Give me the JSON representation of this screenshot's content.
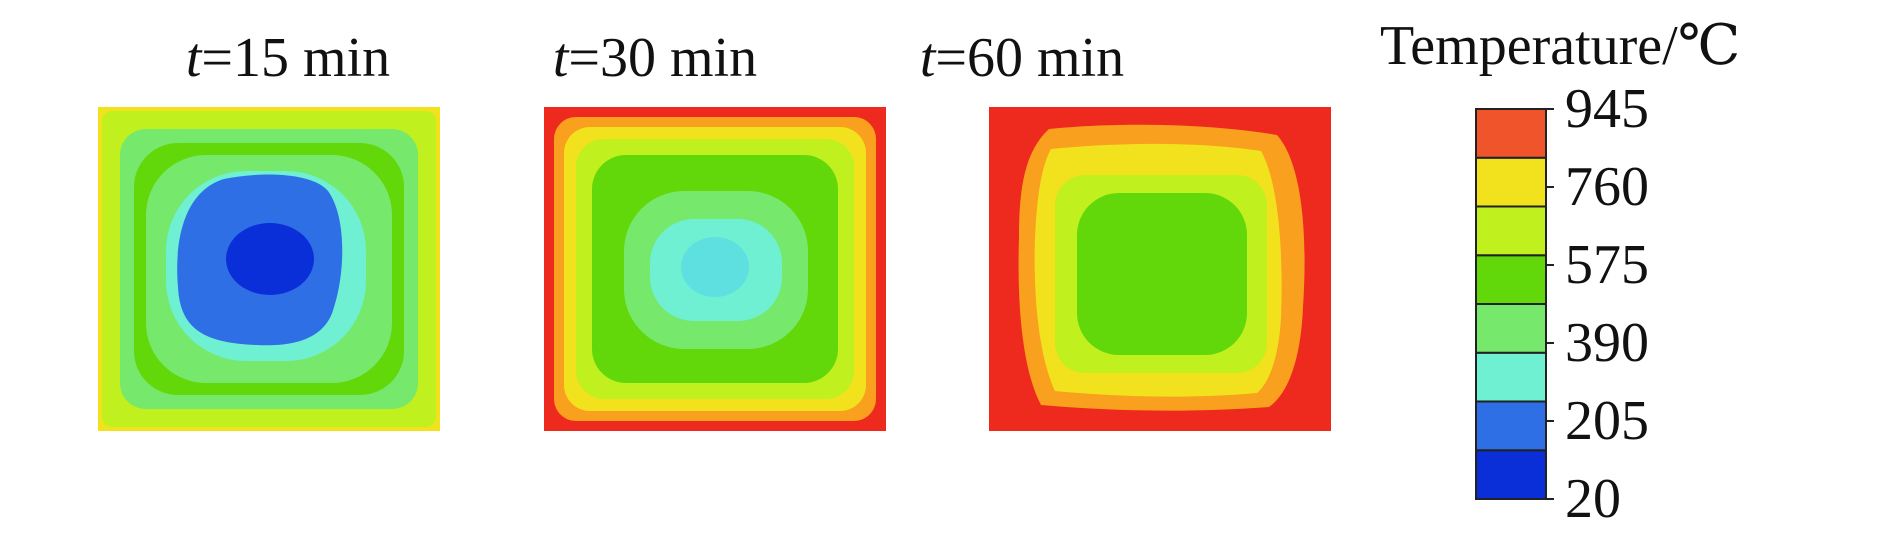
{
  "chart_data": {
    "type": "heatmap",
    "panels": [
      {
        "t_label": "t",
        "rest_label": "=15 min",
        "minutes": 15,
        "center_temp_c": 20
      },
      {
        "t_label": "t",
        "rest_label": "=30 min",
        "minutes": 30,
        "center_temp_c": 250
      },
      {
        "t_label": "t",
        "rest_label": "=60 min",
        "minutes": 60,
        "center_temp_c": 420
      }
    ],
    "colorbar": {
      "title": "Temperature/℃",
      "tick_labels": [
        "945",
        "760",
        "575",
        "390",
        "205",
        "20"
      ],
      "ticks": [
        945,
        760,
        575,
        390,
        205,
        20
      ],
      "range": [
        20,
        945
      ],
      "levels": [
        {
          "lo": 20,
          "hi": 135.6,
          "color": "#0a2fd8"
        },
        {
          "lo": 135.6,
          "hi": 251.3,
          "color": "#2f6fe6"
        },
        {
          "lo": 251.3,
          "hi": 366.9,
          "color": "#6ff0d2"
        },
        {
          "lo": 366.9,
          "hi": 482.5,
          "color": "#76e86c"
        },
        {
          "lo": 482.5,
          "hi": 598.1,
          "color": "#62d80a"
        },
        {
          "lo": 598.1,
          "hi": 713.8,
          "color": "#c0f01e"
        },
        {
          "lo": 713.8,
          "hi": 829.4,
          "color": "#f2e21e"
        },
        {
          "lo": 829.4,
          "hi": 945,
          "color": "#f0542a"
        }
      ],
      "top_color": "#ee2a1e"
    }
  }
}
